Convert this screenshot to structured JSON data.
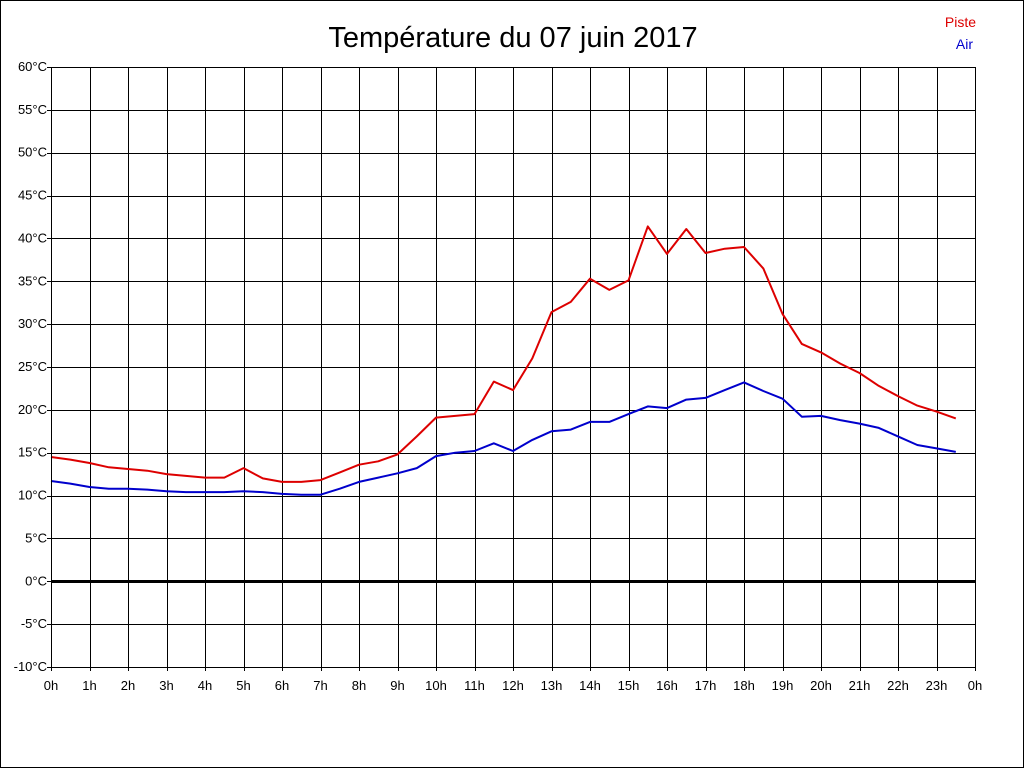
{
  "chart_data": {
    "type": "line",
    "title": "Température du 07 juin 2017",
    "x_tick_labels": [
      "0h",
      "1h",
      "2h",
      "3h",
      "4h",
      "5h",
      "6h",
      "7h",
      "8h",
      "9h",
      "10h",
      "11h",
      "12h",
      "13h",
      "14h",
      "15h",
      "16h",
      "17h",
      "18h",
      "19h",
      "20h",
      "21h",
      "22h",
      "23h",
      "0h"
    ],
    "y_tick_labels": [
      "-10°C",
      "-5°C",
      "0°C",
      "5°C",
      "10°C",
      "15°C",
      "20°C",
      "25°C",
      "30°C",
      "35°C",
      "40°C",
      "45°C",
      "50°C",
      "55°C",
      "60°C"
    ],
    "xlim": [
      0,
      24
    ],
    "ylim": [
      -10,
      60
    ],
    "grid": true,
    "legend_position": "top-right",
    "x": [
      0,
      0.5,
      1,
      1.5,
      2,
      2.5,
      3,
      3.5,
      4,
      4.5,
      5,
      5.5,
      6,
      6.5,
      7,
      7.5,
      8,
      8.5,
      9,
      9.5,
      10,
      10.5,
      11,
      11.5,
      12,
      12.5,
      13,
      13.5,
      14,
      14.5,
      15,
      15.5,
      16,
      16.5,
      17,
      17.5,
      18,
      18.5,
      19,
      19.5,
      20,
      20.5,
      21,
      21.5,
      22,
      22.5,
      23,
      23.5
    ],
    "series": [
      {
        "name": "Piste",
        "color": "#dd0000",
        "values": [
          14.5,
          14.2,
          13.8,
          13.3,
          13.1,
          12.9,
          12.5,
          12.3,
          12.1,
          12.1,
          13.2,
          12.0,
          11.6,
          11.6,
          11.8,
          12.7,
          13.6,
          14.0,
          14.8,
          16.9,
          19.1,
          19.3,
          19.5,
          23.3,
          22.3,
          26.0,
          31.4,
          32.6,
          35.3,
          34.0,
          35.1,
          41.4,
          38.2,
          41.1,
          38.3,
          38.8,
          39.0,
          36.5,
          31.2,
          27.7,
          26.7,
          25.4,
          24.3,
          22.8,
          21.6,
          20.5,
          19.8,
          19.0
        ]
      },
      {
        "name": "Air",
        "color": "#0000cc",
        "values": [
          11.7,
          11.4,
          11.0,
          10.8,
          10.8,
          10.7,
          10.5,
          10.4,
          10.4,
          10.4,
          10.5,
          10.4,
          10.2,
          10.1,
          10.1,
          10.8,
          11.6,
          12.1,
          12.6,
          13.2,
          14.6,
          15.0,
          15.2,
          16.1,
          15.2,
          16.5,
          17.5,
          17.7,
          18.6,
          18.6,
          19.5,
          20.4,
          20.2,
          21.2,
          21.4,
          22.3,
          23.2,
          22.2,
          21.3,
          19.2,
          19.3,
          18.8,
          18.4,
          17.9,
          16.9,
          15.9,
          15.5,
          15.1
        ]
      }
    ]
  }
}
